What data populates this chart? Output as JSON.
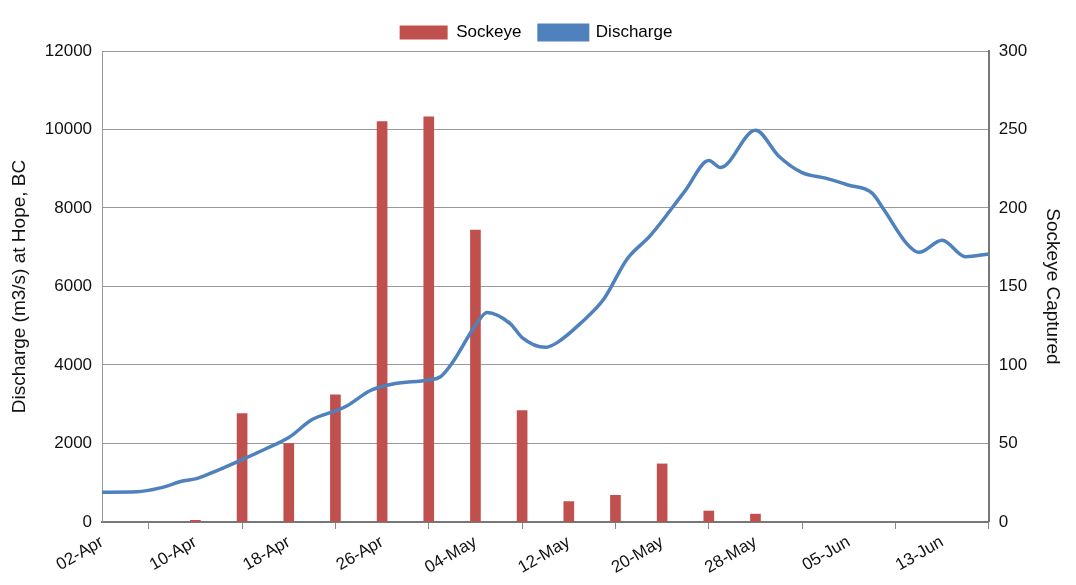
{
  "chart_data": {
    "type": "line",
    "xlabel": null,
    "ylabel": "Discharge (m3/s) at Hope, BC",
    "y2label": "Sockeye Captured",
    "xlim": [
      "--04-02",
      "--06-17"
    ],
    "xticks": [
      {
        "value": "--04-02",
        "label": "02-Apr"
      },
      {
        "value": "--04-10",
        "label": "10-Apr"
      },
      {
        "value": "--04-18",
        "label": "18-Apr"
      },
      {
        "value": "--04-26",
        "label": "26-Apr"
      },
      {
        "value": "--05-04",
        "label": "04-May"
      },
      {
        "value": "--05-12",
        "label": "12-May"
      },
      {
        "value": "--05-20",
        "label": "20-May"
      },
      {
        "value": "--05-28",
        "label": "28-May"
      },
      {
        "value": "--06-05",
        "label": "05-Jun"
      },
      {
        "value": "--06-13",
        "label": "13-Jun"
      }
    ],
    "ylim": [
      0,
      12000
    ],
    "yticks": [
      0,
      2000,
      4000,
      6000,
      8000,
      10000,
      12000
    ],
    "y2lim": [
      0,
      300
    ],
    "y2ticks": [
      0,
      50,
      100,
      150,
      200,
      250,
      300
    ],
    "grid": "y",
    "legend": "top",
    "series": [
      {
        "name": "Sockeye",
        "type": "bar",
        "axis": "y2",
        "color": "#c0504d",
        "x": [
          "--04-10",
          "--04-14",
          "--04-18",
          "--04-22",
          "--04-26",
          "--04-30",
          "--05-04",
          "--05-08",
          "--05-12",
          "--05-16",
          "--05-20",
          "--05-24",
          "--05-28"
        ],
        "values": [
          1,
          69,
          50,
          81,
          255,
          258,
          186,
          71,
          13,
          17,
          37,
          7,
          5
        ]
      },
      {
        "name": "Discharge",
        "axis": "y",
        "color": "#4f81bd",
        "marker": "none",
        "line_style": "solid",
        "x": [
          "--04-02",
          "--04-05",
          "--04-07",
          "--04-09",
          "--04-10",
          "--04-12",
          "--04-14",
          "--04-16",
          "--04-18",
          "--04-20",
          "--04-22",
          "--04-23",
          "--04-25",
          "--04-27",
          "--04-30",
          "--05-01",
          "--05-02",
          "--05-04",
          "--05-05",
          "--05-07",
          "--05-08",
          "--05-10",
          "--05-11",
          "--05-13",
          "--05-15",
          "--05-17",
          "--05-19",
          "--05-22",
          "--05-24",
          "--05-25",
          "--05-28",
          "--05-30",
          "--06-01",
          "--06-03",
          "--06-05",
          "--06-07",
          "--06-08",
          "--06-10",
          "--06-11",
          "--06-13",
          "--06-15",
          "--06-17"
        ],
        "values": [
          760,
          770,
          870,
          1050,
          1100,
          1330,
          1590,
          1860,
          2150,
          2610,
          2830,
          2960,
          3350,
          3520,
          3620,
          3700,
          4050,
          5010,
          5340,
          5050,
          4700,
          4450,
          4570,
          5060,
          5680,
          6700,
          7300,
          8450,
          9210,
          9030,
          9980,
          9320,
          8900,
          8760,
          8580,
          8380,
          7960,
          7080,
          6870,
          7180,
          6760,
          6830
        ]
      }
    ]
  }
}
